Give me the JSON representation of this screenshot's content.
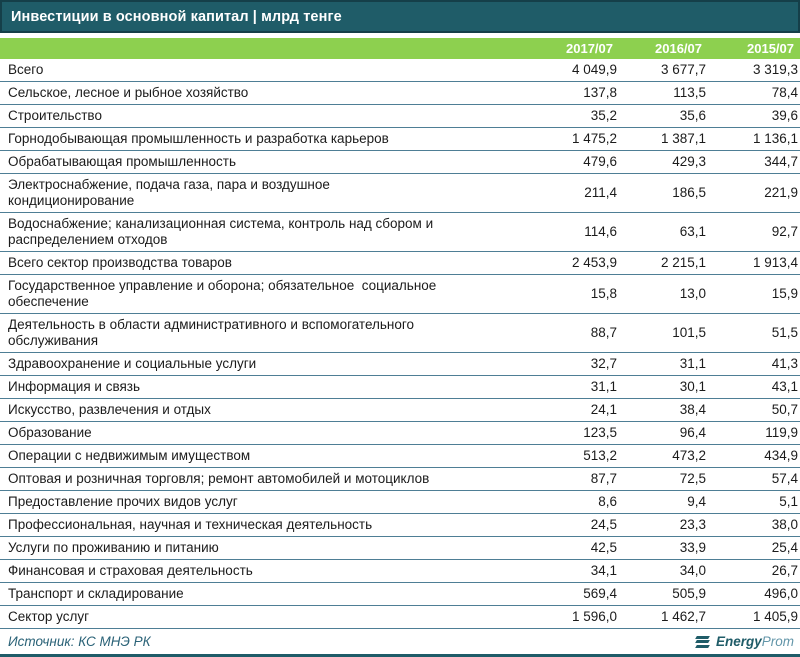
{
  "title": "Инвестиции в основной капитал | млрд тенге",
  "table": {
    "columns": [
      "2017/07",
      "2016/07",
      "2015/07"
    ],
    "rows": [
      {
        "label": "Всего",
        "values": [
          "4 049,9",
          "3 677,7",
          "3 319,3"
        ]
      },
      {
        "label": "Сельское, лесное и рыбное хозяйство",
        "values": [
          "137,8",
          "113,5",
          "78,4"
        ]
      },
      {
        "label": "Строительство",
        "values": [
          "35,2",
          "35,6",
          "39,6"
        ]
      },
      {
        "label": "Горнодобывающая промышленность и разработка карьеров",
        "values": [
          "1 475,2",
          "1 387,1",
          "1 136,1"
        ]
      },
      {
        "label": "Обрабатывающая промышленность",
        "values": [
          "479,6",
          "429,3",
          "344,7"
        ]
      },
      {
        "label": "Электроснабжение, подача газа, пара и воздушное\nкондиционирование",
        "values": [
          "211,4",
          "186,5",
          "221,9"
        ]
      },
      {
        "label": "Водоснабжение; канализационная система, контроль над сбором и\nраспределением отходов",
        "values": [
          "114,6",
          "63,1",
          "92,7"
        ]
      },
      {
        "label": "Всего сектор производства товаров",
        "values": [
          "2 453,9",
          "2 215,1",
          "1 913,4"
        ]
      },
      {
        "label": "Государственное управление и оборона; обязательное  социальное\nобеспечение",
        "values": [
          "15,8",
          "13,0",
          "15,9"
        ]
      },
      {
        "label": "Деятельность в области административного и вспомогательного\nобслуживания",
        "values": [
          "88,7",
          "101,5",
          "51,5"
        ]
      },
      {
        "label": "Здравоохранение и социальные услуги",
        "values": [
          "32,7",
          "31,1",
          "41,3"
        ]
      },
      {
        "label": "Информация и связь",
        "values": [
          "31,1",
          "30,1",
          "43,1"
        ]
      },
      {
        "label": "Искусство, развлечения и отдых",
        "values": [
          "24,1",
          "38,4",
          "50,7"
        ]
      },
      {
        "label": "Образование",
        "values": [
          "123,5",
          "96,4",
          "119,9"
        ]
      },
      {
        "label": "Операции с недвижимым имуществом",
        "values": [
          "513,2",
          "473,2",
          "434,9"
        ]
      },
      {
        "label": "Оптовая и розничная торговля; ремонт автомобилей и мотоциклов",
        "values": [
          "87,7",
          "72,5",
          "57,4"
        ]
      },
      {
        "label": "Предоставление прочих видов услуг",
        "values": [
          "8,6",
          "9,4",
          "5,1"
        ]
      },
      {
        "label": "Профессиональная, научная и техническая деятельность",
        "values": [
          "24,5",
          "23,3",
          "38,0"
        ]
      },
      {
        "label": "Услуги по проживанию и питанию",
        "values": [
          "42,5",
          "33,9",
          "25,4"
        ]
      },
      {
        "label": "Финансовая и страховая деятельность",
        "values": [
          "34,1",
          "34,0",
          "26,7"
        ]
      },
      {
        "label": "Транспорт и складирование",
        "values": [
          "569,4",
          "505,9",
          "496,0"
        ]
      },
      {
        "label": "Сектор услуг",
        "values": [
          "1 596,0",
          "1 462,7",
          "1 405,9"
        ]
      }
    ]
  },
  "footer": {
    "source": "Источник: КС МНЭ РК",
    "logo_bold": "Energy",
    "logo_light": "Prom"
  },
  "colors": {
    "teal": "#1f5c68",
    "tealDark": "#153f49",
    "green": "#8dd04f",
    "divider": "#4e7e95",
    "text": "#1b1b1b",
    "source": "#2a6277",
    "logoLight": "#6396a9"
  },
  "chart_data": {
    "type": "table",
    "title": "Инвестиции в основной капитал, млрд тенге",
    "columns": [
      "2017/07",
      "2016/07",
      "2015/07"
    ],
    "rows": [
      {
        "label": "Всего",
        "values": [
          4049.9,
          3677.7,
          3319.3
        ]
      },
      {
        "label": "Сельское, лесное и рыбное хозяйство",
        "values": [
          137.8,
          113.5,
          78.4
        ]
      },
      {
        "label": "Строительство",
        "values": [
          35.2,
          35.6,
          39.6
        ]
      },
      {
        "label": "Горнодобывающая промышленность и разработка карьеров",
        "values": [
          1475.2,
          1387.1,
          1136.1
        ]
      },
      {
        "label": "Обрабатывающая промышленность",
        "values": [
          479.6,
          429.3,
          344.7
        ]
      },
      {
        "label": "Электроснабжение, подача газа, пара и воздушное кондиционирование",
        "values": [
          211.4,
          186.5,
          221.9
        ]
      },
      {
        "label": "Водоснабжение; канализационная система, контроль над сбором и распределением отходов",
        "values": [
          114.6,
          63.1,
          92.7
        ]
      },
      {
        "label": "Всего сектор производства товаров",
        "values": [
          2453.9,
          2215.1,
          1913.4
        ]
      },
      {
        "label": "Государственное управление и оборона; обязательное социальное обеспечение",
        "values": [
          15.8,
          13.0,
          15.9
        ]
      },
      {
        "label": "Деятельность в области административного и вспомогательного обслуживания",
        "values": [
          88.7,
          101.5,
          51.5
        ]
      },
      {
        "label": "Здравоохранение и социальные услуги",
        "values": [
          32.7,
          31.1,
          41.3
        ]
      },
      {
        "label": "Информация и связь",
        "values": [
          31.1,
          30.1,
          43.1
        ]
      },
      {
        "label": "Искусство, развлечения и отдых",
        "values": [
          24.1,
          38.4,
          50.7
        ]
      },
      {
        "label": "Образование",
        "values": [
          123.5,
          96.4,
          119.9
        ]
      },
      {
        "label": "Операции с недвижимым имуществом",
        "values": [
          513.2,
          473.2,
          434.9
        ]
      },
      {
        "label": "Оптовая и розничная торговля; ремонт автомобилей и мотоциклов",
        "values": [
          87.7,
          72.5,
          57.4
        ]
      },
      {
        "label": "Предоставление прочих видов услуг",
        "values": [
          8.6,
          9.4,
          5.1
        ]
      },
      {
        "label": "Профессиональная, научная и техническая деятельность",
        "values": [
          24.5,
          23.3,
          38.0
        ]
      },
      {
        "label": "Услуги по проживанию и питанию",
        "values": [
          42.5,
          33.9,
          25.4
        ]
      },
      {
        "label": "Финансовая и страховая деятельность",
        "values": [
          34.1,
          34.0,
          26.7
        ]
      },
      {
        "label": "Транспорт и складирование",
        "values": [
          569.4,
          505.9,
          496.0
        ]
      },
      {
        "label": "Сектор услуг",
        "values": [
          1596.0,
          1462.7,
          1405.9
        ]
      }
    ]
  }
}
